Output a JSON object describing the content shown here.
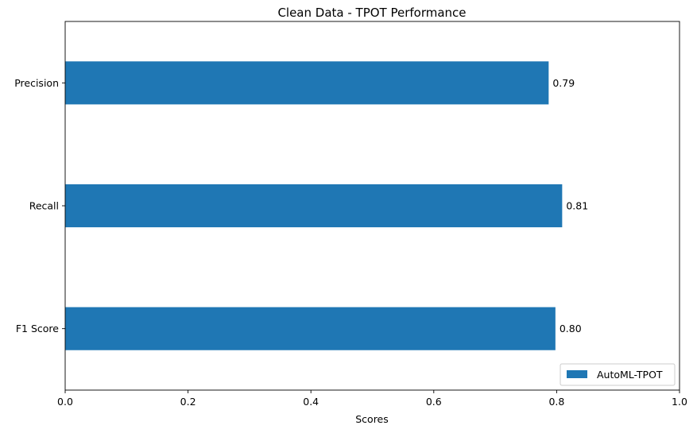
{
  "chart_data": {
    "type": "bar",
    "orientation": "horizontal",
    "title": "Clean Data - TPOT Performance",
    "xlabel": "Scores",
    "ylabel": "",
    "categories": [
      "Precision",
      "Recall",
      "F1 Score"
    ],
    "series": [
      {
        "name": "AutoML-TPOT",
        "values": [
          0.787,
          0.809,
          0.798
        ],
        "labels": [
          "0.79",
          "0.81",
          "0.80"
        ],
        "color": "#1f77b4"
      }
    ],
    "xlim": [
      0.0,
      1.0
    ],
    "xticks": [
      "0.0",
      "0.2",
      "0.4",
      "0.6",
      "0.8",
      "1.0"
    ],
    "grid": false,
    "legend": {
      "position": "lower-right",
      "entries": [
        "AutoML-TPOT"
      ]
    }
  }
}
